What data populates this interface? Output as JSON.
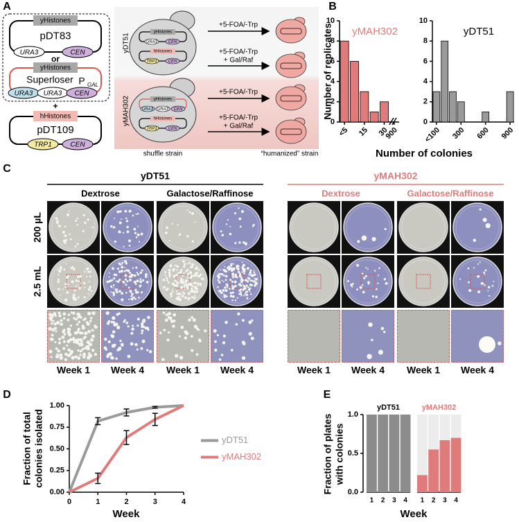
{
  "panel_a": {
    "label": "A",
    "histones_y": "yHistones",
    "histones_h": "hHistones",
    "pDT83": "pDT83",
    "or": "or",
    "superloser": "Superloser",
    "promoter": "P",
    "promoter_sub": "GAL",
    "plus": "+",
    "pDT109": "pDT109",
    "ura3": "URA3",
    "cen": "CEN",
    "trp1": "TRP1",
    "strains": [
      "yDT51",
      "yMAH302"
    ],
    "treatment": "+5-FOA/-Trp",
    "treatment_gal": "+ Gal/Raf",
    "shuffle": "shuffle strain",
    "humanized": "“humanized” strain"
  },
  "panel_c": {
    "label": "C",
    "strains": [
      {
        "name": "yDT51",
        "color": "#000000",
        "media": [
          "Dextrose",
          "Galactose/Raffinose"
        ]
      },
      {
        "name": "yMAH302",
        "color": "#e07b7b",
        "media": [
          "Dextrose",
          "Galactose/Raffinose"
        ]
      }
    ],
    "volumes": [
      "200 µL",
      "2.5 mL"
    ],
    "weeks": [
      "Week 1",
      "Week 4"
    ]
  },
  "chart_data": [
    {
      "type": "bar",
      "panel_label": "B",
      "y_label": "Number of replicates",
      "x_label": "Number of colonies",
      "title": "yMAH302",
      "title_color": "#e07b7b",
      "color": "#e07b7b",
      "categories": [
        "<5",
        null,
        "15",
        null,
        "30",
        "900"
      ],
      "values": [
        8,
        6,
        3,
        1,
        2,
        0
      ],
      "ylim": [
        0,
        10
      ],
      "yticks": [
        0,
        2,
        4,
        6,
        8,
        10
      ]
    },
    {
      "type": "bar",
      "title": "yDT51",
      "title_color": "#000000",
      "color": "#9a9a9a",
      "categories": [
        "<100",
        null,
        null,
        "300",
        null,
        null,
        "600",
        null,
        null,
        "900"
      ],
      "values": [
        3,
        8,
        3,
        2,
        null,
        null,
        1,
        null,
        null,
        3
      ],
      "ylim": [
        0,
        10
      ],
      "yticks": [
        0,
        2,
        4,
        6,
        8,
        10
      ]
    },
    {
      "type": "line",
      "panel_label": "D",
      "y_label": [
        "Fraction of total",
        "colonies isolated"
      ],
      "x_label": "Week",
      "x": [
        0,
        1,
        2,
        3,
        4
      ],
      "xlim": [
        0,
        4
      ],
      "xticks": [
        0,
        1,
        2,
        3,
        4
      ],
      "ylim": [
        0,
        1
      ],
      "yticks": [
        {
          "value": 0,
          "label": "0.00"
        },
        0.25,
        {
          "value": 0.5,
          "label": "0.50"
        },
        0.75,
        {
          "value": 1,
          "label": "1.00"
        }
      ],
      "legend": "right",
      "series": [
        {
          "name": "yDT51",
          "color": "#9a9a9a",
          "values": [
            0,
            0.82,
            0.92,
            0.98,
            1.0
          ],
          "errors": [
            null,
            0.04,
            0.04,
            0.01,
            null
          ]
        },
        {
          "name": "yMAH302",
          "color": "#e07b7b",
          "values": [
            0,
            0.16,
            0.63,
            0.84,
            1.0
          ],
          "errors": [
            null,
            0.06,
            0.08,
            0.07,
            null
          ]
        }
      ]
    },
    {
      "type": "groupedbar",
      "panel_label": "E",
      "y_label": [
        "Fraction of plates",
        "with colonies"
      ],
      "x_label": "Week",
      "categories": [
        "1",
        "2",
        "3",
        "4"
      ],
      "background": "#ececec",
      "ylim": [
        0,
        1
      ],
      "yticks": [
        {
          "value": 0,
          "label": "0.0"
        },
        0.5,
        {
          "value": 1,
          "label": "1.0"
        }
      ],
      "groups": [
        {
          "name": "yDT51",
          "color": "#8c8c8c",
          "label_color": "#000000",
          "values": [
            1,
            1,
            1,
            1
          ]
        },
        {
          "name": "yMAH302",
          "color": "#e07b7b",
          "label_color": "#e07b7b",
          "values": [
            0.22,
            0.55,
            0.67,
            0.7
          ]
        }
      ]
    }
  ]
}
